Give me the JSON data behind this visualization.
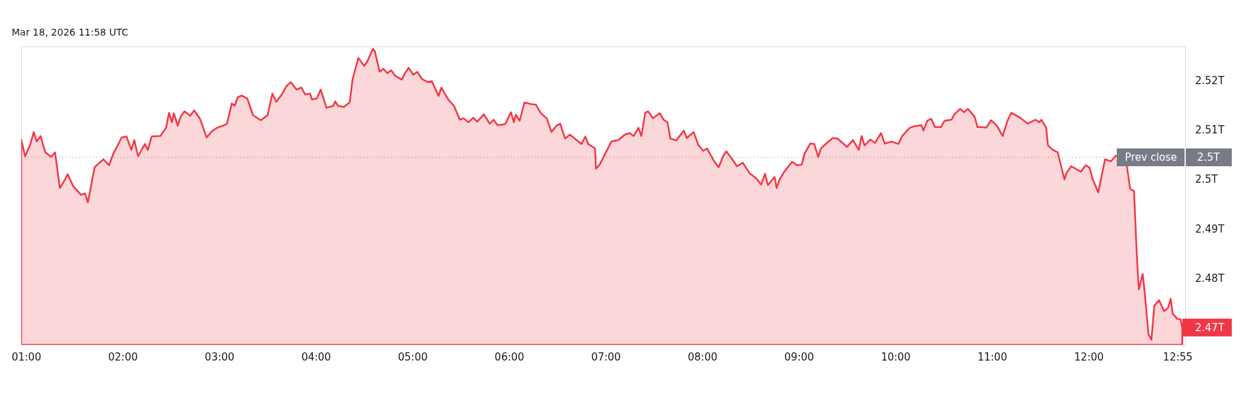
{
  "chart_data": {
    "type": "area",
    "annotations": [
      "Mar 18, 2026 11:58 UTC",
      "2.5T",
      {
        "text": "2.47T",
        "x": 12.97,
        "y": 2.47
      }
    ],
    "x": [
      0.95,
      0.99,
      1.04,
      1.08,
      1.11,
      1.15,
      1.2,
      1.26,
      1.3,
      1.35,
      1.4,
      1.43,
      1.49,
      1.57,
      1.61,
      1.64,
      1.71,
      1.8,
      1.86,
      1.9,
      1.99,
      2.04,
      2.09,
      2.12,
      2.16,
      2.23,
      2.26,
      2.3,
      2.39,
      2.45,
      2.48,
      2.51,
      2.53,
      2.57,
      2.6,
      2.64,
      2.7,
      2.74,
      2.8,
      2.87,
      2.92,
      2.98,
      3.04,
      3.08,
      3.13,
      3.16,
      3.19,
      3.23,
      3.29,
      3.35,
      3.43,
      3.5,
      3.55,
      3.59,
      3.64,
      3.7,
      3.74,
      3.8,
      3.85,
      3.89,
      3.94,
      3.96,
      4.01,
      4.05,
      4.11,
      4.18,
      4.2,
      4.23,
      4.29,
      4.35,
      4.38,
      4.41,
      4.44,
      4.5,
      4.53,
      4.59,
      4.61,
      4.66,
      4.7,
      4.74,
      4.78,
      4.82,
      4.89,
      4.92,
      4.96,
      5.01,
      5.05,
      5.1,
      5.16,
      5.2,
      5.27,
      5.3,
      5.37,
      5.43,
      5.49,
      5.53,
      5.58,
      5.63,
      5.67,
      5.74,
      5.8,
      5.84,
      5.88,
      5.96,
      6.02,
      6.05,
      6.07,
      6.11,
      6.16,
      6.22,
      6.28,
      6.33,
      6.39,
      6.44,
      6.49,
      6.53,
      6.58,
      6.63,
      6.68,
      6.75,
      6.79,
      6.82,
      6.89,
      6.9,
      6.94,
      7.01,
      7.06,
      7.13,
      7.2,
      7.25,
      7.29,
      7.34,
      7.37,
      7.41,
      7.44,
      7.49,
      7.56,
      7.6,
      7.64,
      7.67,
      7.73,
      7.81,
      7.84,
      7.91,
      7.96,
      8.01,
      8.05,
      8.12,
      8.17,
      8.22,
      8.25,
      8.3,
      8.36,
      8.42,
      8.49,
      8.56,
      8.61,
      8.65,
      8.68,
      8.75,
      8.77,
      8.8,
      8.85,
      8.93,
      8.98,
      9.03,
      9.06,
      9.12,
      9.16,
      9.2,
      9.23,
      9.29,
      9.35,
      9.4,
      9.5,
      9.56,
      9.62,
      9.65,
      9.68,
      9.74,
      9.79,
      9.85,
      9.89,
      9.96,
      10.03,
      10.07,
      10.15,
      10.2,
      10.27,
      10.29,
      10.33,
      10.37,
      10.41,
      10.47,
      10.51,
      10.58,
      10.61,
      10.67,
      10.71,
      10.75,
      10.82,
      10.85,
      10.89,
      10.94,
      10.99,
      11.05,
      11.11,
      11.16,
      11.2,
      11.29,
      11.37,
      11.45,
      11.49,
      11.51,
      11.56,
      11.58,
      11.63,
      11.68,
      11.73,
      11.75,
      11.77,
      11.82,
      11.92,
      11.97,
      12.01,
      12.04,
      12.1,
      12.17,
      12.23,
      12.28,
      12.33,
      12.39,
      12.43,
      12.47,
      12.5,
      12.52,
      12.56,
      12.58,
      12.62,
      12.65,
      12.68,
      12.73,
      12.78,
      12.82,
      12.85,
      12.87,
      12.92,
      12.95,
      12.97
    ],
    "series": [
      {
        "color": "#f23645",
        "values": [
          2.508,
          2.5046,
          2.5068,
          2.5095,
          2.5076,
          2.5087,
          2.5054,
          2.5045,
          2.5054,
          2.4982,
          2.4998,
          2.501,
          2.4985,
          2.4968,
          2.4971,
          2.4953,
          2.5024,
          2.504,
          2.5028,
          2.505,
          2.5084,
          2.5086,
          2.5059,
          2.5079,
          2.5046,
          2.5071,
          2.5059,
          2.5086,
          2.5087,
          2.5104,
          2.5134,
          2.5115,
          2.5133,
          2.5108,
          2.5126,
          2.5137,
          2.5128,
          2.5139,
          2.5122,
          2.5084,
          2.5096,
          2.5104,
          2.5108,
          2.5112,
          2.5153,
          2.5148,
          2.5165,
          2.5169,
          2.5163,
          2.5129,
          2.5119,
          2.5129,
          2.5173,
          2.5156,
          2.5169,
          2.5189,
          2.5196,
          2.5181,
          2.5185,
          2.5171,
          2.5173,
          2.5161,
          2.5163,
          2.5181,
          2.5144,
          2.5148,
          2.5157,
          2.5148,
          2.5146,
          2.5155,
          2.5201,
          2.5223,
          2.5245,
          2.5229,
          2.5237,
          2.5263,
          2.5259,
          2.5217,
          2.5223,
          2.5214,
          2.522,
          2.5209,
          2.5201,
          2.5213,
          2.5225,
          2.5211,
          2.5217,
          2.5202,
          2.5196,
          2.5198,
          2.5168,
          2.5185,
          2.5161,
          2.5148,
          2.512,
          2.5123,
          2.5115,
          2.5124,
          2.5116,
          2.5131,
          2.5112,
          2.512,
          2.5109,
          2.5111,
          2.5135,
          2.5115,
          2.513,
          2.5118,
          2.5155,
          2.5152,
          2.515,
          2.5133,
          2.5123,
          2.5095,
          2.5108,
          2.5112,
          2.5082,
          2.509,
          2.5082,
          2.5071,
          2.5086,
          2.5071,
          2.5062,
          2.5021,
          2.503,
          2.5057,
          2.5076,
          2.5079,
          2.509,
          2.5093,
          2.5087,
          2.5104,
          2.5087,
          2.5134,
          2.5137,
          2.5123,
          2.5133,
          2.512,
          2.5115,
          2.5082,
          2.5078,
          2.5098,
          2.5083,
          2.5095,
          2.5069,
          2.5057,
          2.5062,
          2.5037,
          2.5024,
          2.5048,
          2.5056,
          2.5043,
          2.5026,
          2.5033,
          2.5012,
          2.5001,
          2.4989,
          2.5011,
          2.4988,
          2.5004,
          2.4982,
          2.4999,
          2.5015,
          2.5035,
          2.5028,
          2.5029,
          2.5052,
          2.5072,
          2.5071,
          2.5045,
          2.5062,
          2.5073,
          2.5083,
          2.5082,
          2.5065,
          2.5079,
          2.5059,
          2.5087,
          2.5068,
          2.508,
          2.5073,
          2.5093,
          2.5072,
          2.5076,
          2.5071,
          2.5087,
          2.5104,
          2.5107,
          2.5109,
          2.5098,
          2.5118,
          2.5122,
          2.5105,
          2.5105,
          2.5118,
          2.512,
          2.5131,
          2.5142,
          2.5135,
          2.5142,
          2.5126,
          2.5105,
          2.5105,
          2.5104,
          2.5119,
          2.5108,
          2.5087,
          2.5118,
          2.5134,
          2.5124,
          2.5112,
          2.512,
          2.5115,
          2.512,
          2.5104,
          2.5068,
          2.5059,
          2.5054,
          2.5015,
          2.4999,
          2.5012,
          2.5026,
          2.5015,
          2.5028,
          2.5023,
          2.5001,
          2.4973,
          2.504,
          2.5036,
          2.5047,
          2.5043,
          2.5035,
          2.498,
          2.4976,
          2.4841,
          2.4777,
          2.4808,
          2.4772,
          2.4686,
          2.4675,
          2.4744,
          2.4755,
          2.4733,
          2.4739,
          2.4758,
          2.4728,
          2.4717,
          2.4717,
          2.47
        ]
      }
    ],
    "xlim": [
      0.95,
      13.0
    ],
    "ylim": [
      2.4665,
      2.5268
    ],
    "xticks": [
      {
        "value": 1,
        "label": "01:00"
      },
      {
        "value": 2,
        "label": "02:00"
      },
      {
        "value": 3,
        "label": "03:00"
      },
      {
        "value": 4,
        "label": "04:00"
      },
      {
        "value": 5,
        "label": "05:00"
      },
      {
        "value": 6,
        "label": "06:00"
      },
      {
        "value": 7,
        "label": "07:00"
      },
      {
        "value": 8,
        "label": "08:00"
      },
      {
        "value": 9,
        "label": "09:00"
      },
      {
        "value": 10,
        "label": "10:00"
      },
      {
        "value": 11,
        "label": "11:00"
      },
      {
        "value": 12,
        "label": "12:00"
      },
      {
        "value": 12.92,
        "label": "12:55"
      }
    ],
    "yticks": [
      {
        "value": 2.48,
        "label": "2.48T"
      },
      {
        "value": 2.49,
        "label": "2.49T"
      },
      {
        "value": 2.5,
        "label": "2.5T"
      },
      {
        "value": 2.51,
        "label": "2.51T"
      },
      {
        "value": 2.52,
        "label": "2.52T"
      }
    ],
    "ref_lines": [
      {
        "axis": "y",
        "value": 2.5044,
        "label": "Prev close",
        "color": "#787b86",
        "line_style": "dotted"
      }
    ],
    "grid": false,
    "legend": false,
    "marker": "none",
    "line_style": "solid"
  }
}
